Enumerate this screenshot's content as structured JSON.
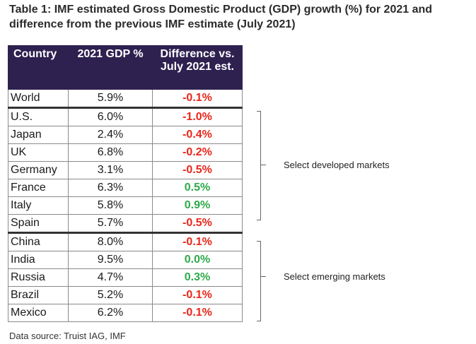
{
  "title": "Table 1: IMF estimated Gross Domestic Product (GDP) growth (%) for 2021 and difference from the previous IMF estimate (July 2021)",
  "headers": {
    "country": "Country",
    "gdp": "2021 GDP %",
    "diff": "Difference vs. July 2021 est."
  },
  "rows": [
    {
      "country": "World",
      "gdp": "5.9%",
      "diff": "-0.1%",
      "sign": "neg"
    },
    {
      "country": "U.S.",
      "gdp": "6.0%",
      "diff": "-1.0%",
      "sign": "neg"
    },
    {
      "country": "Japan",
      "gdp": "2.4%",
      "diff": "-0.4%",
      "sign": "neg"
    },
    {
      "country": "UK",
      "gdp": "6.8%",
      "diff": "-0.2%",
      "sign": "neg"
    },
    {
      "country": "Germany",
      "gdp": "3.1%",
      "diff": "-0.5%",
      "sign": "neg"
    },
    {
      "country": "France",
      "gdp": "6.3%",
      "diff": "0.5%",
      "sign": "pos"
    },
    {
      "country": "Italy",
      "gdp": "5.8%",
      "diff": "0.9%",
      "sign": "pos"
    },
    {
      "country": "Spain",
      "gdp": "5.7%",
      "diff": "-0.5%",
      "sign": "neg"
    },
    {
      "country": "China",
      "gdp": "8.0%",
      "diff": "-0.1%",
      "sign": "neg"
    },
    {
      "country": "India",
      "gdp": "9.5%",
      "diff": "0.0%",
      "sign": "pos"
    },
    {
      "country": "Russia",
      "gdp": "4.7%",
      "diff": "0.3%",
      "sign": "pos"
    },
    {
      "country": "Brazil",
      "gdp": "5.2%",
      "diff": "-0.1%",
      "sign": "neg"
    },
    {
      "country": "Mexico",
      "gdp": "6.2%",
      "diff": "-0.1%",
      "sign": "neg"
    }
  ],
  "groups": {
    "developed": "Select developed markets",
    "emerging": "Select emerging markets"
  },
  "colors": {
    "header_bg": "#2e2150",
    "negative": "#e8271b",
    "positive": "#2eaa4a"
  },
  "source": "Data source: Truist IAG, IMF"
}
